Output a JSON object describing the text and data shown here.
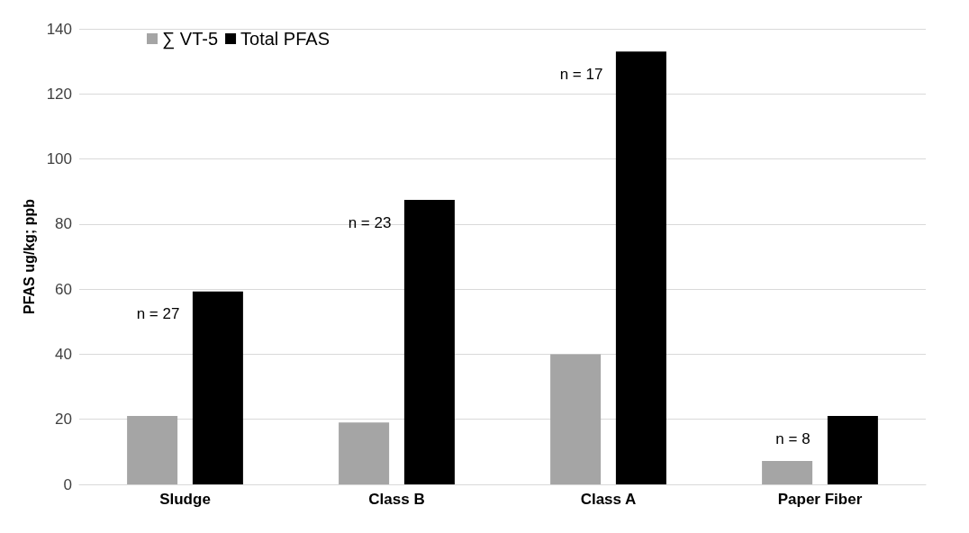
{
  "chart_data": {
    "type": "bar",
    "ylabel": "PFAS ug/kg; ppb",
    "categories": [
      "Sludge",
      "Class B",
      "Class A",
      "Paper Fiber"
    ],
    "series": [
      {
        "name": "∑ VT-5",
        "color": "#a5a5a5",
        "values": [
          21,
          19,
          40,
          7.2
        ]
      },
      {
        "name": "Total PFAS",
        "color": "#000000",
        "values": [
          59.3,
          87.4,
          133,
          21
        ]
      }
    ],
    "ylim": [
      0,
      140
    ],
    "yticks": [
      0,
      20,
      40,
      60,
      80,
      100,
      120,
      140
    ],
    "grid": "y",
    "legend": "top left",
    "annotations": [
      "n = 27",
      "n = 23",
      "n = 17",
      "n = 8"
    ]
  }
}
